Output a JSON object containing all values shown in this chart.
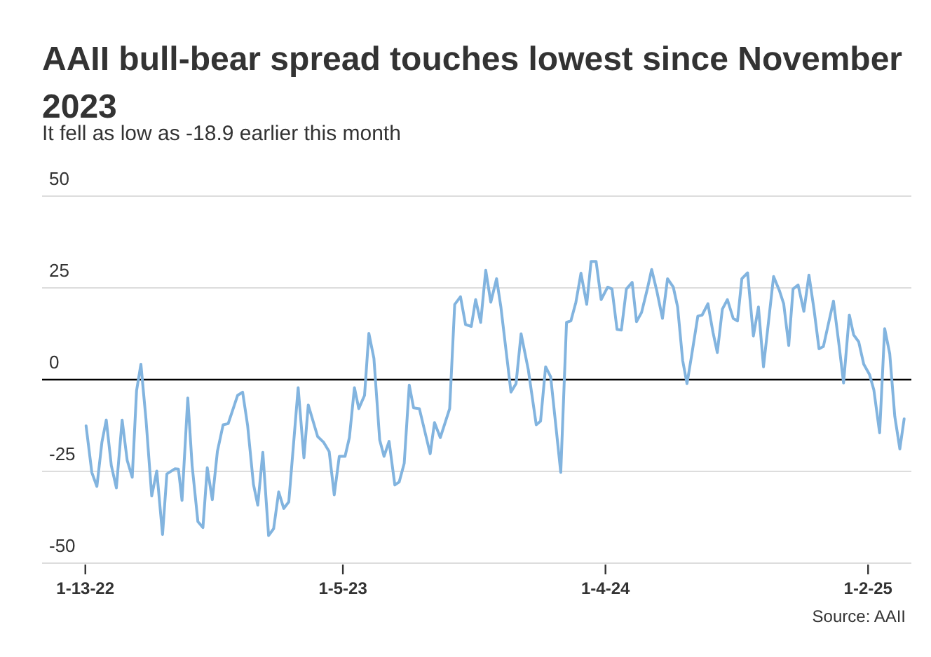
{
  "chart_data": {
    "type": "line",
    "title": "AAII bull-bear spread touches lowest since November 2023",
    "subtitle": "It fell as low as -18.9 earlier this month",
    "annotations": [
      "Source: AAII"
    ],
    "x": [
      "2022-01-14",
      "2022-01-22",
      "2022-01-29",
      "2022-02-05",
      "2022-02-11",
      "2022-02-18",
      "2022-02-25",
      "2022-03-05",
      "2022-03-12",
      "2022-03-19",
      "2022-03-25",
      "2022-03-31",
      "2022-04-07",
      "2022-04-15",
      "2022-04-22",
      "2022-04-30",
      "2022-05-06",
      "2022-05-17",
      "2022-05-22",
      "2022-05-27",
      "2022-06-04",
      "2022-06-10",
      "2022-06-18",
      "2022-06-25",
      "2022-07-01",
      "2022-07-08",
      "2022-07-15",
      "2022-07-23",
      "2022-07-30",
      "2022-08-12",
      "2022-08-19",
      "2022-08-26",
      "2022-09-03",
      "2022-09-09",
      "2022-09-16",
      "2022-09-24",
      "2022-10-01",
      "2022-10-08",
      "2022-10-15",
      "2022-10-22",
      "2022-11-04",
      "2022-11-12",
      "2022-11-18",
      "2022-12-01",
      "2022-12-09",
      "2022-12-17",
      "2022-12-24",
      "2022-12-31",
      "2023-01-08",
      "2023-01-14",
      "2023-01-21",
      "2023-01-27",
      "2023-02-04",
      "2023-02-10",
      "2023-02-17",
      "2023-02-25",
      "2023-03-03",
      "2023-03-10",
      "2023-03-18",
      "2023-03-24",
      "2023-03-31",
      "2023-04-07",
      "2023-04-13",
      "2023-04-21",
      "2023-05-06",
      "2023-05-12",
      "2023-05-20",
      "2023-06-02",
      "2023-06-09",
      "2023-06-17",
      "2023-06-24",
      "2023-07-02",
      "2023-07-08",
      "2023-07-15",
      "2023-07-22",
      "2023-07-29",
      "2023-08-06",
      "2023-08-12",
      "2023-08-26",
      "2023-09-02",
      "2023-09-09",
      "2023-09-19",
      "2023-09-30",
      "2023-10-06",
      "2023-10-13",
      "2023-10-20",
      "2023-11-03",
      "2023-11-11",
      "2023-11-17",
      "2023-11-24",
      "2023-12-01",
      "2023-12-09",
      "2023-12-15",
      "2023-12-22",
      "2023-12-29",
      "2024-01-07",
      "2024-01-13",
      "2024-01-20",
      "2024-01-26",
      "2024-02-02",
      "2024-02-10",
      "2024-02-16",
      "2024-02-23",
      "2024-03-02",
      "2024-03-08",
      "2024-03-15",
      "2024-03-23",
      "2024-03-30",
      "2024-04-07",
      "2024-04-13",
      "2024-04-20",
      "2024-04-26",
      "2024-05-02",
      "2024-05-11",
      "2024-05-17",
      "2024-05-25",
      "2024-06-01",
      "2024-06-07",
      "2024-06-14",
      "2024-06-21",
      "2024-06-29",
      "2024-07-05",
      "2024-07-11",
      "2024-07-19",
      "2024-07-27",
      "2024-08-03",
      "2024-08-10",
      "2024-08-24",
      "2024-09-01",
      "2024-09-07",
      "2024-09-14",
      "2024-09-20",
      "2024-09-27",
      "2024-10-05",
      "2024-10-12",
      "2024-10-19",
      "2024-10-26",
      "2024-11-01",
      "2024-11-15",
      "2024-11-23",
      "2024-11-29",
      "2024-12-07",
      "2024-12-13",
      "2024-12-20",
      "2024-12-27",
      "2025-01-04",
      "2025-01-10",
      "2025-01-18",
      "2025-01-25",
      "2025-02-01",
      "2025-02-08",
      "2025-02-15",
      "2025-02-21"
    ],
    "series": [
      {
        "color": "#82b4df",
        "values": [
          -12.6,
          -25.3,
          -29.1,
          -17,
          -11,
          -23.4,
          -29.5,
          -11,
          -22,
          -26.6,
          -3,
          4.2,
          -10.7,
          -31.7,
          -24.9,
          -42.2,
          -25.7,
          -24.3,
          -24.4,
          -32.9,
          -5,
          -23.4,
          -38.7,
          -40.3,
          -24,
          -32.7,
          -19.6,
          -12.3,
          -12,
          -4.3,
          -3.4,
          -12.6,
          -28.5,
          -34.2,
          -19.8,
          -42.5,
          -40.6,
          -30.6,
          -35.1,
          -33.3,
          -2.2,
          -21.3,
          -6.9,
          -15.5,
          -17,
          -19.6,
          -31.4,
          -20.9,
          -20.9,
          -15.8,
          -2.2,
          -7.9,
          -4.3,
          12.6,
          5.8,
          -16.4,
          -20.9,
          -16.8,
          -28.7,
          -27.9,
          -22.8,
          -1.5,
          -7.7,
          -7.9,
          -20.2,
          -11.7,
          -15.8,
          -7.9,
          20.5,
          22.6,
          15,
          14.5,
          21.8,
          15.6,
          29.8,
          21.1,
          27.5,
          19.8,
          -3.4,
          -1.1,
          12.5,
          2.7,
          -12.3,
          -11.3,
          3.5,
          0.8,
          -25.3,
          15.6,
          16,
          21.1,
          29,
          20.5,
          32.2,
          32.2,
          21.8,
          25.2,
          24.7,
          13.7,
          13.5,
          24.7,
          26.5,
          15.8,
          18.3,
          24.7,
          30,
          24.3,
          16.7,
          27.5,
          25.2,
          19.8,
          5.2,
          -1.1,
          6.1,
          17.3,
          17.6,
          20.7,
          12.9,
          7.4,
          19.2,
          21.8,
          16.7,
          16,
          27.5,
          29.1,
          11.9,
          19.8,
          3.5,
          28.1,
          24.3,
          20.7,
          9.3,
          24.7,
          25.8,
          18.6,
          28.5,
          19.2,
          8.4,
          9,
          21.4,
          9,
          -0.9,
          17.6,
          12.2,
          10.3,
          4.2,
          1.4,
          -2.8,
          -14.5,
          13.9,
          7.1,
          -10,
          -18.9,
          -10.7
        ]
      }
    ],
    "xlim": [
      "2021-11-14",
      "2025-03-03"
    ],
    "xticks": [
      {
        "value": "2022-01-13",
        "label": "1-13-22"
      },
      {
        "value": "2023-01-05",
        "label": "1-5-23"
      },
      {
        "value": "2024-01-04",
        "label": "1-4-24"
      },
      {
        "value": "2025-01-02",
        "label": "1-2-25"
      }
    ],
    "ylim": [
      -50,
      50
    ],
    "yticks": [
      -50,
      -25,
      0,
      25,
      50
    ],
    "grid": "y",
    "ref_lines": [
      {
        "axis": "y",
        "value": 0,
        "color": "#000000"
      }
    ]
  }
}
